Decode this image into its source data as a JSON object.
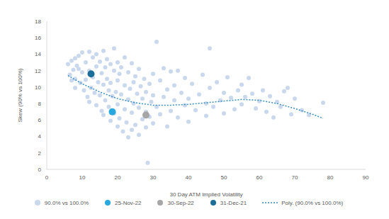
{
  "chart_data": {
    "type": "scatter",
    "x_label": "30 Day ATM Implied Volatility",
    "y_label": "Skew (90% vs 100%)",
    "xlim": [
      0,
      90
    ],
    "xticks": [
      0,
      10,
      20,
      30,
      40,
      50,
      60,
      70,
      80,
      90
    ],
    "ylim": [
      0,
      18
    ],
    "yticks": [
      0,
      2,
      4,
      6,
      8,
      10,
      12,
      14,
      16,
      18
    ],
    "grid": false,
    "legend": "bottom",
    "series": [
      {
        "name": "90.0% vs 100.0%",
        "type": "scatter",
        "marker": "circle",
        "color": "#c9d8ec",
        "x": [
          6,
          6.5,
          7,
          7,
          7.5,
          8,
          8,
          8.5,
          8,
          9,
          9,
          9.5,
          10,
          10,
          10.5,
          11,
          11,
          11.5,
          12,
          12,
          12.5,
          12,
          13,
          13,
          13.5,
          14,
          14,
          14,
          14.5,
          15,
          15,
          15.5,
          15.5,
          16,
          16,
          16,
          16.5,
          16.5,
          17,
          17,
          17.5,
          17.5,
          18,
          18,
          18,
          18.5,
          19,
          19,
          19,
          19.5,
          20,
          20,
          20,
          20,
          20.5,
          20.5,
          21,
          21,
          21.5,
          22,
          22,
          22,
          22.5,
          23,
          23,
          23,
          23.5,
          24,
          24,
          24,
          24.5,
          24.5,
          25,
          25,
          25.5,
          26,
          26,
          26,
          26.5,
          27,
          27,
          27.5,
          28,
          28,
          28,
          28.5,
          29,
          29,
          29.5,
          30,
          30,
          30,
          31,
          31,
          32,
          32,
          33,
          33,
          34,
          34,
          35,
          35,
          36,
          36,
          37,
          37,
          38,
          39,
          39,
          40,
          40,
          41,
          42,
          43,
          44,
          45,
          45,
          46,
          46,
          47,
          48,
          49,
          50,
          50,
          51,
          52,
          53,
          54,
          55,
          55,
          56,
          57,
          58,
          59,
          60,
          61,
          62,
          63,
          64,
          65,
          66,
          67,
          68,
          69,
          70,
          72,
          74,
          78
        ],
        "values": [
          12.8,
          11.5,
          13.2,
          10.8,
          12.1,
          13.5,
          11.0,
          12.6,
          9.9,
          13.8,
          12.2,
          10.5,
          14.2,
          11.8,
          9.6,
          13.0,
          10.9,
          8.8,
          14.3,
          12.0,
          9.9,
          8.2,
          13.6,
          11.2,
          9.3,
          14.0,
          12.5,
          7.8,
          10.6,
          13.1,
          9.0,
          11.7,
          7.1,
          14.4,
          10.3,
          6.6,
          12.4,
          8.4,
          13.4,
          11.0,
          7.6,
          9.6,
          12.8,
          5.9,
          10.5,
          8.9,
          14.7,
          12.0,
          6.8,
          9.4,
          13.0,
          10.8,
          7.9,
          5.2,
          11.6,
          6.2,
          12.4,
          9.1,
          4.6,
          13.6,
          10.2,
          7.3,
          5.7,
          11.8,
          8.5,
          3.9,
          9.8,
          12.9,
          6.9,
          4.8,
          10.6,
          8.0,
          11.3,
          5.4,
          9.2,
          12.2,
          7.5,
          4.2,
          10.1,
          8.6,
          6.1,
          11.0,
          9.4,
          7.0,
          5.1,
          0.8,
          10.4,
          6.4,
          8.2,
          11.6,
          9.0,
          5.6,
          15.5,
          7.6,
          10.8,
          6.7,
          12.3,
          8.8,
          9.7,
          5.2,
          11.9,
          7.1,
          8.4,
          10.2,
          12.0,
          6.3,
          9.3,
          7.8,
          11.1,
          8.6,
          5.8,
          10.4,
          7.2,
          9.1,
          11.5,
          8.0,
          6.5,
          9.9,
          14.7,
          7.6,
          10.6,
          8.4,
          9.3,
          6.8,
          11.2,
          8.7,
          7.3,
          9.6,
          10.3,
          7.9,
          8.8,
          11.1,
          9.2,
          7.4,
          8.3,
          9.6,
          7.0,
          8.9,
          6.3,
          8.2,
          7.6,
          9.5,
          9.9,
          6.7,
          8.6,
          7.2,
          6.6,
          8.1
        ]
      },
      {
        "name": "25-Nov-22",
        "type": "scatter",
        "marker": "circle",
        "color": "#29a8e0",
        "x": [
          18.5
        ],
        "values": [
          7.0
        ]
      },
      {
        "name": "30-Sep-22",
        "type": "scatter",
        "marker": "circle",
        "color": "#a6a6a6",
        "x": [
          28
        ],
        "values": [
          6.6
        ]
      },
      {
        "name": "31-Dec-21",
        "type": "scatter",
        "marker": "circle",
        "color": "#1c6e9a",
        "x": [
          12.5
        ],
        "values": [
          11.6
        ]
      },
      {
        "name": "Poly. (90.0% vs 100.0%)",
        "type": "line",
        "line_style": "dotted",
        "color": "#3a8fc0",
        "x": [
          6,
          10,
          15,
          20,
          25,
          30,
          35,
          40,
          45,
          50,
          55,
          60,
          65,
          70,
          75,
          78
        ],
        "values": [
          11.4,
          10.4,
          9.4,
          8.6,
          8.1,
          7.8,
          7.8,
          7.9,
          8.1,
          8.3,
          8.5,
          8.4,
          8.0,
          7.4,
          6.7,
          6.2
        ]
      }
    ]
  }
}
